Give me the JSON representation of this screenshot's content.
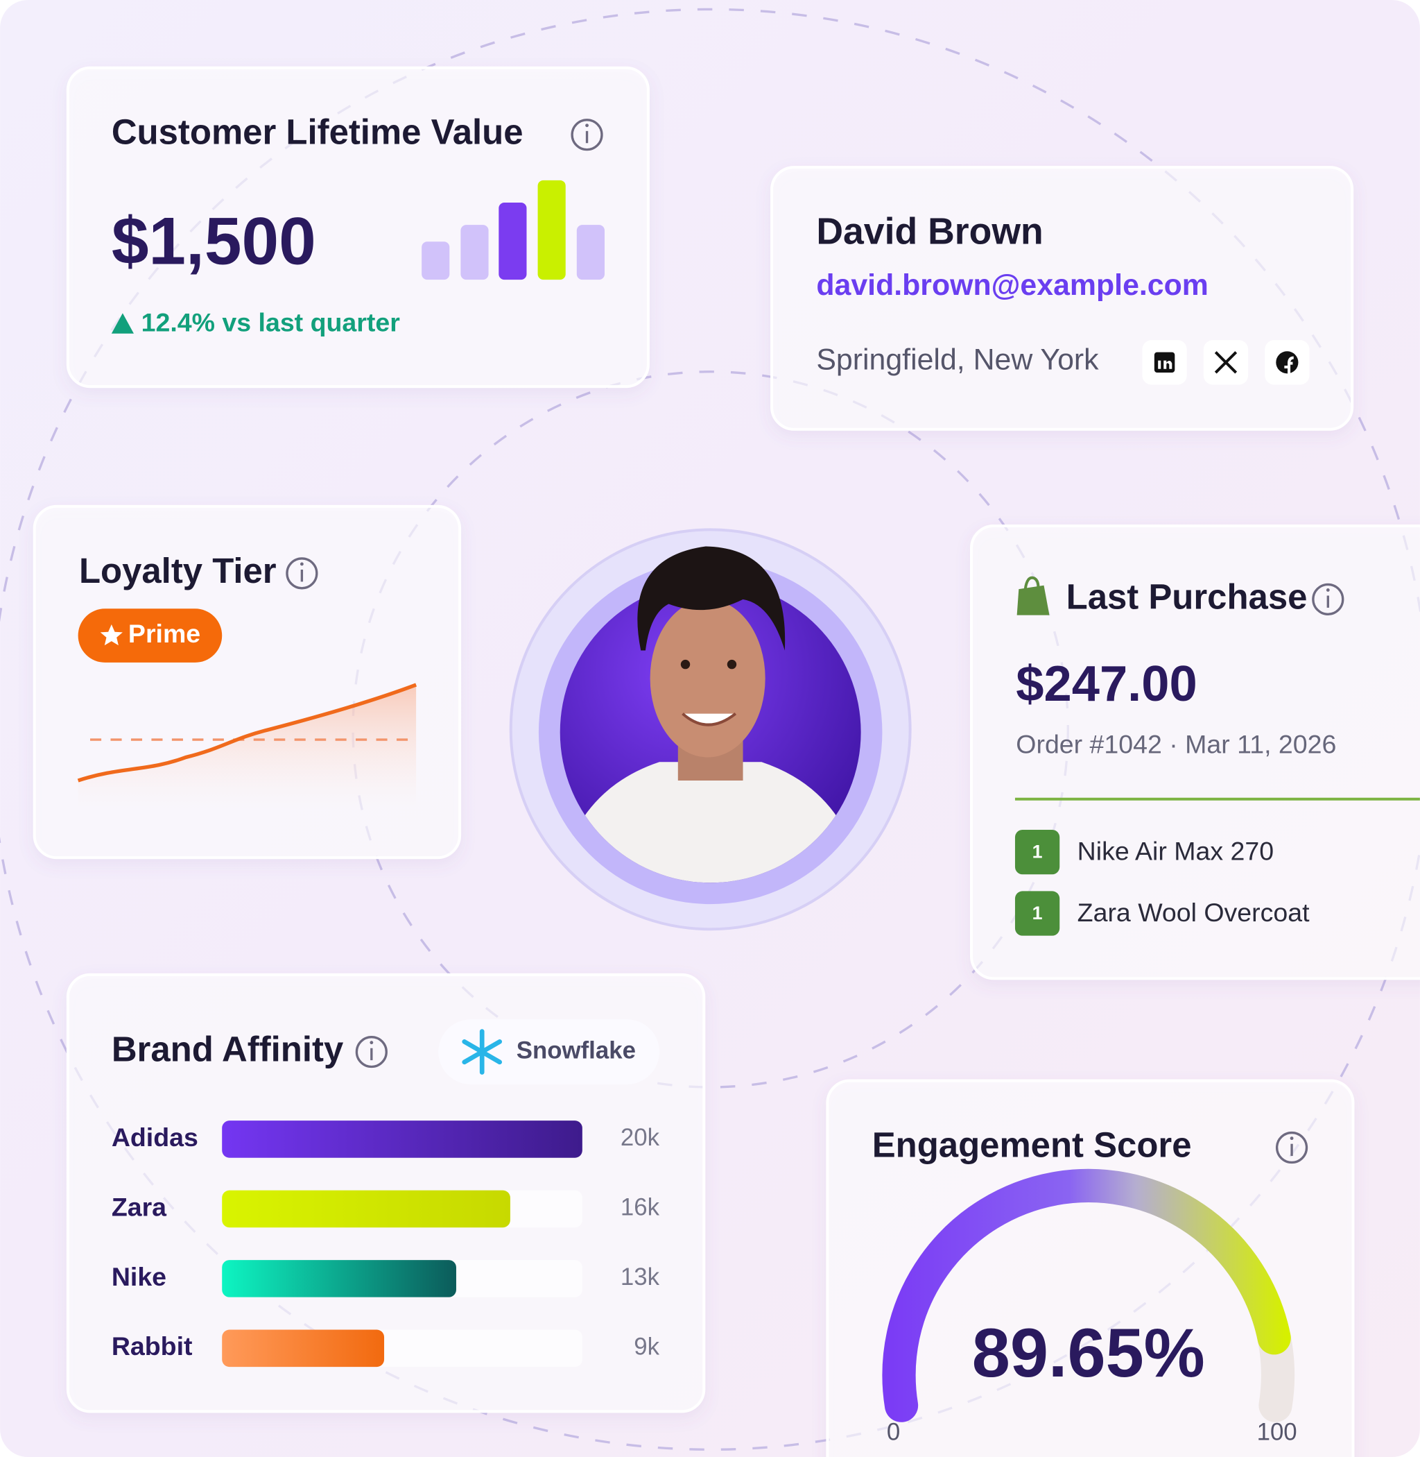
{
  "clv": {
    "title": "Customer Lifetime Value",
    "value": "$1,500",
    "change": "12.4% vs last quarter"
  },
  "profile": {
    "name": "David Brown",
    "email": "david.brown@example.com",
    "location": "Springfield, New York"
  },
  "loyalty": {
    "title": "Loyalty Tier",
    "tier": "Prime"
  },
  "last_purchase": {
    "title": "Last Purchase",
    "amount": "$247.00",
    "order": "Order #1042 · Mar 11, 2026",
    "items": [
      {
        "qty": "1",
        "name": "Nike Air Max 270"
      },
      {
        "qty": "1",
        "name": "Zara Wool Overcoat"
      }
    ]
  },
  "brand_affinity": {
    "title": "Brand Affinity",
    "source": "Snowflake",
    "categories": [
      "Adidas",
      "Zara",
      "Nike",
      "Rabbit"
    ],
    "values": [
      20000,
      16000,
      13000,
      9000
    ],
    "value_labels": [
      "20k",
      "16k",
      "13k",
      "9k"
    ]
  },
  "engagement": {
    "title": "Engagement Score",
    "value": 89.65,
    "value_label": "89.65%",
    "min": 0,
    "max": 100
  }
}
